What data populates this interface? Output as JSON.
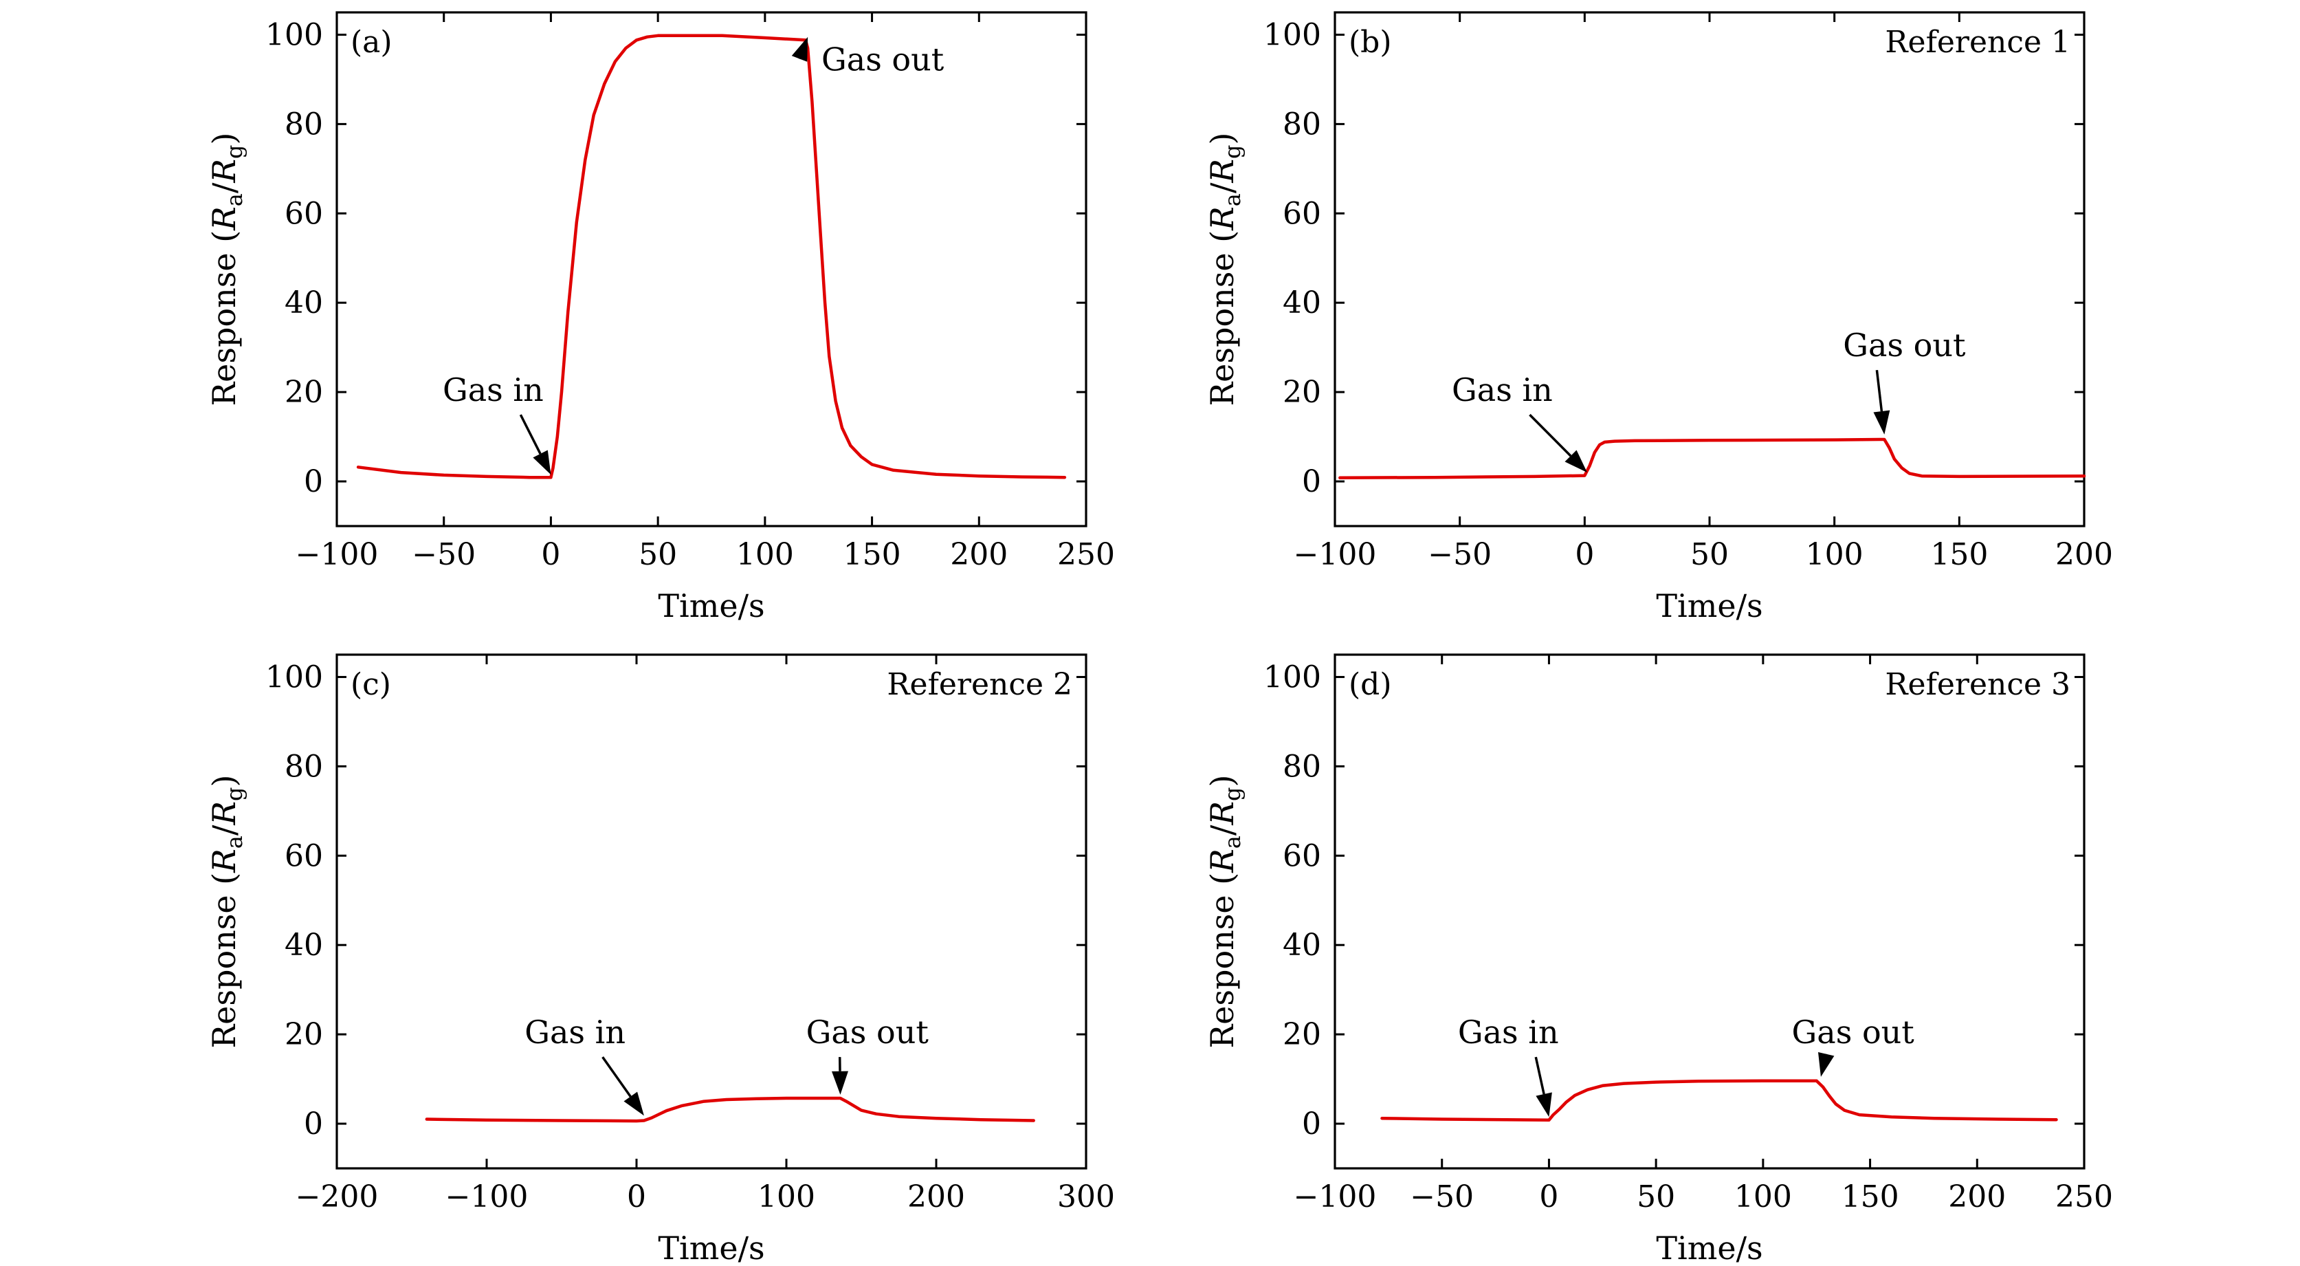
{
  "colors": {
    "series": "#e00000",
    "axes": "#000000"
  },
  "chart_data": [
    {
      "type": "line",
      "panel": "(a)",
      "title": "",
      "xlabel": "Time/s",
      "ylabel": {
        "main": "Response (",
        "ra": "R",
        "ra_sub": "a",
        "slash": "/",
        "rg": "R",
        "rg_sub": "g",
        "close": ")"
      },
      "xlim": [
        -100,
        250
      ],
      "ylim": [
        -10,
        105
      ],
      "xticks": [
        -100,
        -50,
        0,
        50,
        100,
        150,
        200,
        250
      ],
      "yticks": [
        0,
        20,
        40,
        60,
        80,
        100
      ],
      "xtick_labels": [
        "−100",
        "−50",
        "0",
        "50",
        "100",
        "150",
        "200",
        "250"
      ],
      "ytick_labels": [
        "0",
        "20",
        "40",
        "60",
        "80",
        "100"
      ],
      "series": [
        {
          "x": [
            -90,
            -70,
            -50,
            -30,
            -10,
            0,
            1,
            3,
            5,
            8,
            12,
            16,
            20,
            25,
            30,
            35,
            40,
            45,
            50,
            60,
            80,
            100,
            119,
            120,
            122,
            124,
            126,
            128,
            130,
            133,
            136,
            140,
            145,
            150,
            160,
            180,
            200,
            220,
            240
          ],
          "y": [
            3.2,
            2.0,
            1.4,
            1.1,
            0.9,
            0.9,
            3,
            10,
            20,
            38,
            58,
            72,
            82,
            89,
            94,
            97,
            98.8,
            99.5,
            99.8,
            99.8,
            99.8,
            99.3,
            98.8,
            97,
            85,
            70,
            55,
            40,
            28,
            18,
            12,
            8,
            5.5,
            3.8,
            2.5,
            1.6,
            1.2,
            1.0,
            0.9
          ]
        }
      ],
      "annotations": [
        {
          "text": "Gas in",
          "x": -27,
          "y": 18,
          "arrow_to": [
            0,
            1.5
          ]
        },
        {
          "text": "Gas out",
          "x": 155,
          "y": 92,
          "arrow_to": [
            120,
            99.5
          ]
        }
      ]
    },
    {
      "type": "line",
      "panel": "(b)",
      "title": "Reference 1",
      "xlabel": "Time/s",
      "ylabel": {
        "main": "Response (",
        "ra": "R",
        "ra_sub": "a",
        "slash": "/",
        "rg": "R",
        "rg_sub": "g",
        "close": ")"
      },
      "xlim": [
        -100,
        200
      ],
      "ylim": [
        -10,
        105
      ],
      "xticks": [
        -100,
        -50,
        0,
        50,
        100,
        150,
        200
      ],
      "yticks": [
        0,
        20,
        40,
        60,
        80,
        100
      ],
      "xtick_labels": [
        "−100",
        "−50",
        "0",
        "50",
        "100",
        "150",
        "200"
      ],
      "ytick_labels": [
        "0",
        "20",
        "40",
        "60",
        "80",
        "100"
      ],
      "series": [
        {
          "x": [
            -98,
            -60,
            -20,
            0,
            2,
            4,
            6,
            8,
            12,
            20,
            50,
            100,
            118,
            120,
            122,
            124,
            127,
            130,
            135,
            150,
            200
          ],
          "y": [
            0.8,
            0.9,
            1.1,
            1.3,
            3.5,
            6.5,
            8.2,
            8.8,
            9.0,
            9.1,
            9.2,
            9.3,
            9.4,
            9.4,
            7.5,
            5,
            3,
            1.8,
            1.2,
            1.1,
            1.2
          ]
        }
      ],
      "annotations": [
        {
          "text": "Gas in",
          "x": -33,
          "y": 18,
          "arrow_to": [
            1,
            2.0
          ]
        },
        {
          "text": "Gas out",
          "x": 128,
          "y": 28,
          "arrow_to": [
            120,
            10.5
          ]
        }
      ]
    },
    {
      "type": "line",
      "panel": "(c)",
      "title": "Reference 2",
      "xlabel": "Time/s",
      "ylabel": {
        "main": "Response (",
        "ra": "R",
        "ra_sub": "a",
        "slash": "/",
        "rg": "R",
        "rg_sub": "g",
        "close": ")"
      },
      "xlim": [
        -200,
        300
      ],
      "ylim": [
        -10,
        105
      ],
      "xticks": [
        -200,
        -100,
        0,
        100,
        200,
        300
      ],
      "yticks": [
        0,
        20,
        40,
        60,
        80,
        100
      ],
      "xtick_labels": [
        "−200",
        "−100",
        "0",
        "100",
        "200",
        "300"
      ],
      "ytick_labels": [
        "0",
        "20",
        "40",
        "60",
        "80",
        "100"
      ],
      "series": [
        {
          "x": [
            -140,
            -100,
            -50,
            0,
            5,
            10,
            15,
            20,
            30,
            45,
            60,
            80,
            100,
            120,
            136,
            140,
            145,
            150,
            160,
            175,
            200,
            230,
            265
          ],
          "y": [
            1.0,
            0.8,
            0.7,
            0.6,
            0.7,
            1.3,
            2.1,
            2.9,
            4.0,
            5.0,
            5.4,
            5.6,
            5.7,
            5.7,
            5.7,
            5.0,
            4.0,
            3.0,
            2.2,
            1.6,
            1.2,
            0.9,
            0.7
          ]
        }
      ],
      "annotations": [
        {
          "text": "Gas in",
          "x": -41,
          "y": 18,
          "arrow_to": [
            5,
            1.8
          ]
        },
        {
          "text": "Gas out",
          "x": 154,
          "y": 18,
          "arrow_to": [
            136,
            6.5
          ]
        }
      ]
    },
    {
      "type": "line",
      "panel": "(d)",
      "title": "Reference 3",
      "xlabel": "Time/s",
      "ylabel": {
        "main": "Response (",
        "ra": "R",
        "ra_sub": "a",
        "slash": "/",
        "rg": "R",
        "rg_sub": "g",
        "close": ")"
      },
      "xlim": [
        -100,
        250
      ],
      "ylim": [
        -10,
        105
      ],
      "xticks": [
        -100,
        -50,
        0,
        50,
        100,
        150,
        200,
        250
      ],
      "yticks": [
        0,
        20,
        40,
        60,
        80,
        100
      ],
      "xtick_labels": [
        "−100",
        "−50",
        "0",
        "50",
        "100",
        "150",
        "200",
        "250"
      ],
      "ytick_labels": [
        "0",
        "20",
        "40",
        "60",
        "80",
        "100"
      ],
      "series": [
        {
          "x": [
            -78,
            -50,
            -20,
            0,
            2,
            5,
            8,
            12,
            18,
            25,
            35,
            50,
            70,
            100,
            125,
            128,
            131,
            134,
            138,
            145,
            160,
            180,
            210,
            237
          ],
          "y": [
            1.2,
            1.0,
            0.9,
            0.8,
            2.0,
            3.3,
            4.8,
            6.3,
            7.6,
            8.5,
            9.0,
            9.3,
            9.5,
            9.6,
            9.6,
            8.2,
            6.2,
            4.4,
            3.0,
            2.0,
            1.5,
            1.2,
            1.0,
            0.9
          ]
        }
      ],
      "annotations": [
        {
          "text": "Gas in",
          "x": -19,
          "y": 18,
          "arrow_to": [
            0,
            1.5
          ]
        },
        {
          "text": "Gas out",
          "x": 142,
          "y": 18,
          "arrow_to": [
            127,
            10.5
          ]
        }
      ]
    }
  ]
}
